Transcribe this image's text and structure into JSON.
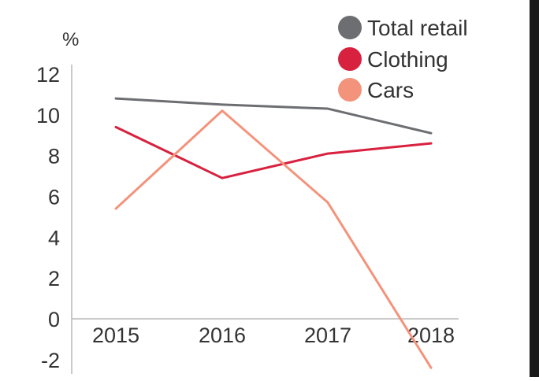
{
  "chart_data": {
    "type": "line",
    "title": "",
    "xlabel": "",
    "ylabel": "%",
    "categories": [
      "2015",
      "2016",
      "2017",
      "2018"
    ],
    "ylim": [
      -2,
      12
    ],
    "yticks": [
      "12",
      "10",
      "8",
      "6",
      "4",
      "2",
      "0",
      "-2"
    ],
    "grid": false,
    "legend_position": "top-right",
    "series": [
      {
        "name": "Total retail",
        "color": "#6d6e71",
        "values": [
          10.8,
          10.5,
          10.3,
          9.1
        ]
      },
      {
        "name": "Clothing",
        "color": "#d8213f",
        "values": [
          9.4,
          6.9,
          8.1,
          8.6
        ]
      },
      {
        "name": "Cars",
        "color": "#f4937b",
        "values": [
          5.4,
          10.2,
          5.7,
          -2.4
        ]
      }
    ]
  }
}
